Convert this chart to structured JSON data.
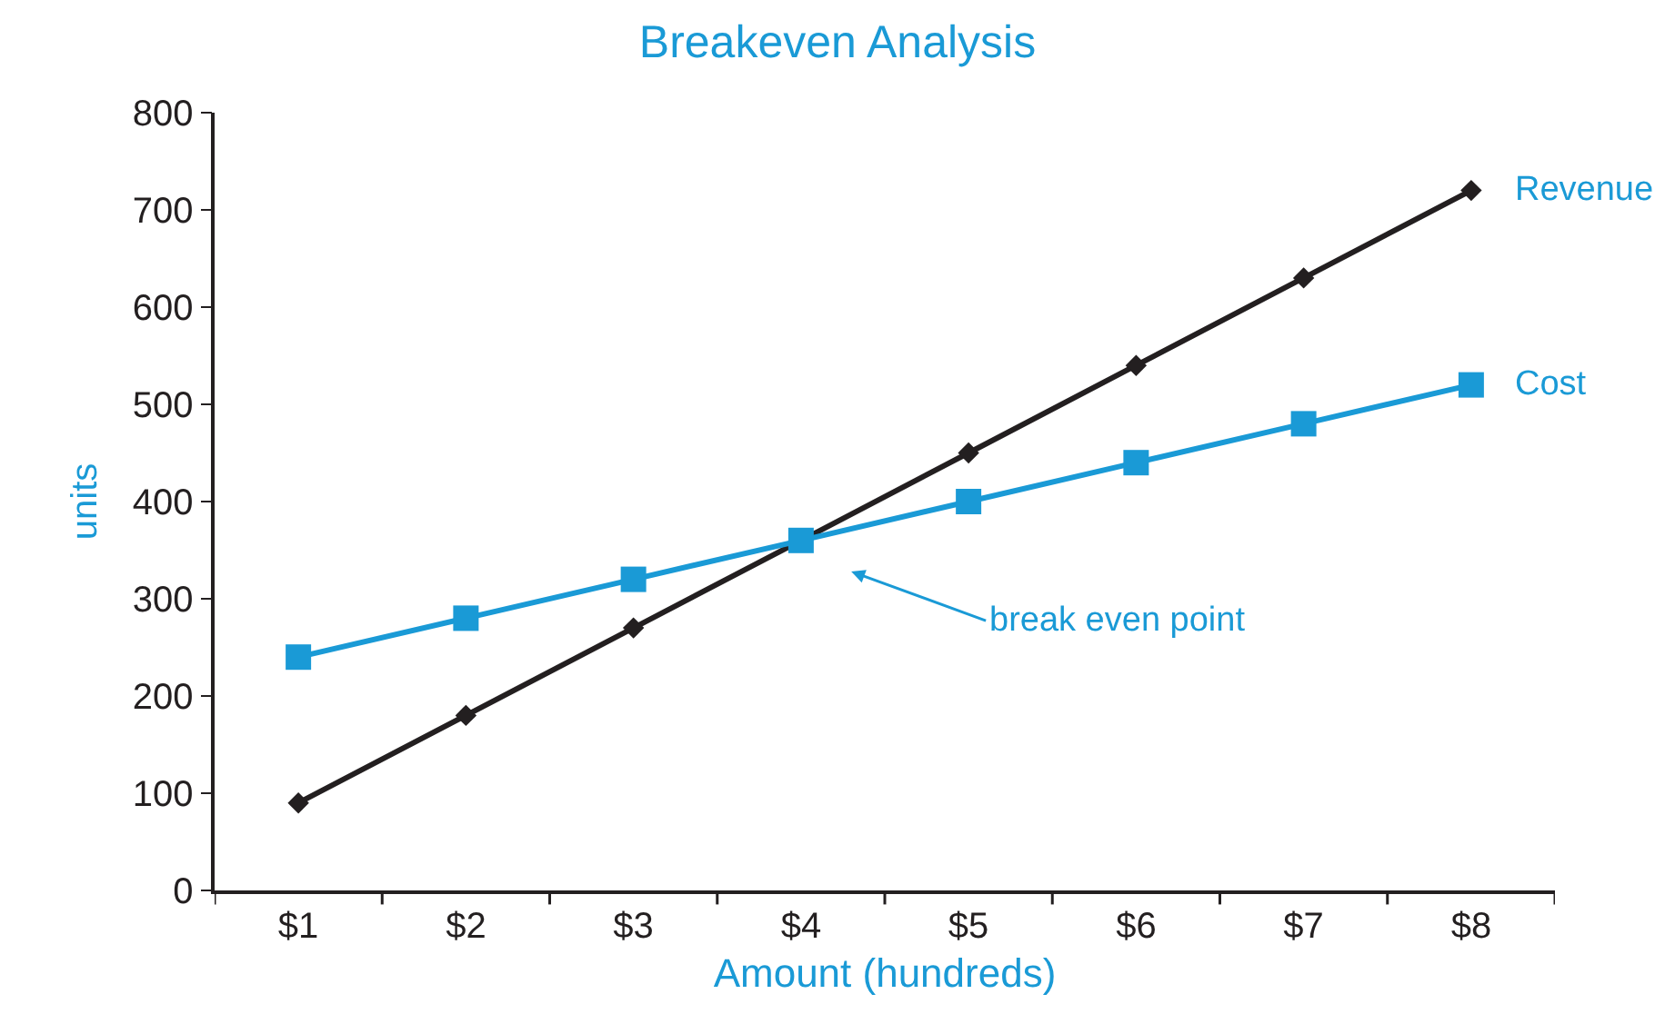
{
  "chart_data": {
    "type": "line",
    "title": "Breakeven Analysis",
    "xlabel": "Amount (hundreds)",
    "ylabel": "units",
    "categories": [
      "$1",
      "$2",
      "$3",
      "$4",
      "$5",
      "$6",
      "$7",
      "$8"
    ],
    "series": [
      {
        "name": "Revenue",
        "color": "#231f20",
        "marker": "diamond",
        "values": [
          90,
          180,
          270,
          360,
          450,
          540,
          630,
          720
        ]
      },
      {
        "name": "Cost",
        "color": "#1a9ad6",
        "marker": "square",
        "values": [
          240,
          280,
          320,
          360,
          400,
          440,
          480,
          520
        ]
      }
    ],
    "ylim": [
      0,
      800
    ],
    "yticks": [
      0,
      100,
      200,
      300,
      400,
      500,
      600,
      700,
      800
    ],
    "annotations": [
      "break even point"
    ],
    "legend": false,
    "line_style": "solid"
  }
}
